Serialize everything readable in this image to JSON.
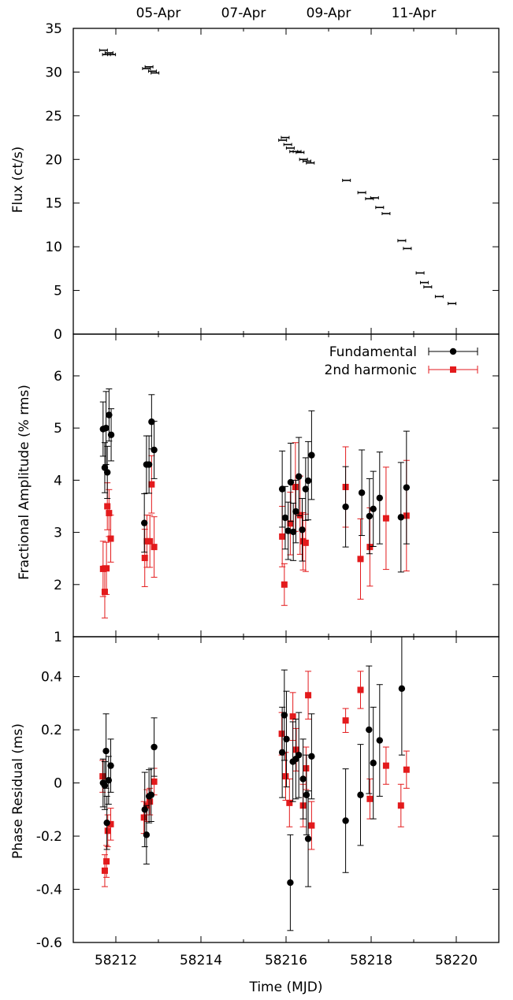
{
  "chart_data": [
    {
      "type": "scatter",
      "panel": "flux",
      "ylabel": "Flux (ct/s)",
      "xlim": [
        58211,
        58221
      ],
      "ylim": [
        0,
        35
      ],
      "yticks": [
        0,
        5,
        10,
        15,
        20,
        25,
        30,
        35
      ],
      "top_axis_ticks": [
        {
          "label": "05-Apr",
          "x": 58213
        },
        {
          "label": "07-Apr",
          "x": 58215
        },
        {
          "label": "09-Apr",
          "x": 58217
        },
        {
          "label": "11-Apr",
          "x": 58219
        }
      ],
      "series": [
        {
          "color": "#000000",
          "points": [
            {
              "x": 58211.71,
              "y": 32.5
            },
            {
              "x": 58211.78,
              "y": 32.0
            },
            {
              "x": 58211.84,
              "y": 32.2
            },
            {
              "x": 58211.9,
              "y": 32.0
            },
            {
              "x": 58212.72,
              "y": 30.4
            },
            {
              "x": 58212.78,
              "y": 30.6
            },
            {
              "x": 58212.86,
              "y": 30.1
            },
            {
              "x": 58212.92,
              "y": 29.9
            },
            {
              "x": 58215.92,
              "y": 22.2
            },
            {
              "x": 58215.98,
              "y": 22.5
            },
            {
              "x": 58216.04,
              "y": 21.7
            },
            {
              "x": 58216.1,
              "y": 21.3
            },
            {
              "x": 58216.18,
              "y": 20.9
            },
            {
              "x": 58216.26,
              "y": 20.9
            },
            {
              "x": 58216.33,
              "y": 20.8
            },
            {
              "x": 58216.41,
              "y": 20.0
            },
            {
              "x": 58216.49,
              "y": 19.8
            },
            {
              "x": 58216.57,
              "y": 19.6
            },
            {
              "x": 58217.42,
              "y": 17.6
            },
            {
              "x": 58217.78,
              "y": 16.2
            },
            {
              "x": 58217.96,
              "y": 15.5
            },
            {
              "x": 58218.08,
              "y": 15.6
            },
            {
              "x": 58218.2,
              "y": 14.5
            },
            {
              "x": 58218.35,
              "y": 13.8
            },
            {
              "x": 58218.72,
              "y": 10.7
            },
            {
              "x": 58218.85,
              "y": 9.8
            },
            {
              "x": 58219.15,
              "y": 7.0
            },
            {
              "x": 58219.25,
              "y": 5.9
            },
            {
              "x": 58219.33,
              "y": 5.4
            },
            {
              "x": 58219.6,
              "y": 4.3
            },
            {
              "x": 58219.9,
              "y": 3.5
            }
          ]
        }
      ]
    },
    {
      "type": "scatter",
      "panel": "amplitude",
      "ylabel": "Fractional Amplitude (% rms)",
      "xlim": [
        58211,
        58221
      ],
      "ylim": [
        1,
        6.8
      ],
      "yticks": [
        1,
        2,
        3,
        4,
        5,
        6
      ],
      "legend": "top-right",
      "series": [
        {
          "name": "Fundamental",
          "color": "#000000",
          "marker": "circle",
          "points": [
            {
              "x": 58211.7,
              "y": 4.98,
              "err": 0.52
            },
            {
              "x": 58211.74,
              "y": 4.24,
              "err": 0.48
            },
            {
              "x": 58211.77,
              "y": 5.0,
              "err": 0.7
            },
            {
              "x": 58211.8,
              "y": 4.15,
              "err": 0.5
            },
            {
              "x": 58211.84,
              "y": 5.25,
              "err": 0.5
            },
            {
              "x": 58211.89,
              "y": 4.87,
              "err": 0.5
            },
            {
              "x": 58212.67,
              "y": 3.18,
              "err": 0.56
            },
            {
              "x": 58212.72,
              "y": 4.3,
              "err": 0.55
            },
            {
              "x": 58212.78,
              "y": 4.3,
              "err": 0.55
            },
            {
              "x": 58212.84,
              "y": 5.12,
              "err": 0.52
            },
            {
              "x": 58212.9,
              "y": 4.58,
              "err": 0.55
            },
            {
              "x": 58215.91,
              "y": 3.83,
              "err": 0.73
            },
            {
              "x": 58215.98,
              "y": 3.28,
              "err": 0.6
            },
            {
              "x": 58216.05,
              "y": 3.03,
              "err": 0.55
            },
            {
              "x": 58216.11,
              "y": 3.96,
              "err": 0.75
            },
            {
              "x": 58216.17,
              "y": 3.01,
              "err": 0.55
            },
            {
              "x": 58216.23,
              "y": 3.4,
              "err": 0.6
            },
            {
              "x": 58216.3,
              "y": 4.07,
              "err": 0.75
            },
            {
              "x": 58216.38,
              "y": 3.05,
              "err": 0.6
            },
            {
              "x": 58216.46,
              "y": 3.83,
              "err": 0.6
            },
            {
              "x": 58216.52,
              "y": 3.99,
              "err": 0.75
            },
            {
              "x": 58216.6,
              "y": 4.48,
              "err": 0.85
            },
            {
              "x": 58217.4,
              "y": 3.49,
              "err": 0.77
            },
            {
              "x": 58217.78,
              "y": 3.76,
              "err": 0.82
            },
            {
              "x": 58217.96,
              "y": 3.31,
              "err": 0.72
            },
            {
              "x": 58218.05,
              "y": 3.45,
              "err": 0.72
            },
            {
              "x": 58218.2,
              "y": 3.66,
              "err": 0.88
            },
            {
              "x": 58218.7,
              "y": 3.29,
              "err": 1.05
            },
            {
              "x": 58218.83,
              "y": 3.86,
              "err": 1.08
            }
          ]
        },
        {
          "name": "2nd harmonic",
          "color": "#e31a1c",
          "marker": "square",
          "points": [
            {
              "x": 58211.7,
              "y": 2.3,
              "err": 0.53
            },
            {
              "x": 58211.74,
              "y": 1.86,
              "err": 0.5
            },
            {
              "x": 58211.78,
              "y": 2.31,
              "err": 0.5
            },
            {
              "x": 58211.8,
              "y": 3.5,
              "err": 0.45
            },
            {
              "x": 58211.84,
              "y": 3.37,
              "err": 0.45
            },
            {
              "x": 58211.88,
              "y": 2.88,
              "err": 0.45
            },
            {
              "x": 58212.68,
              "y": 2.51,
              "err": 0.55
            },
            {
              "x": 58212.73,
              "y": 2.83,
              "err": 0.5
            },
            {
              "x": 58212.8,
              "y": 2.83,
              "err": 0.5
            },
            {
              "x": 58212.84,
              "y": 3.92,
              "err": 0.55
            },
            {
              "x": 58212.9,
              "y": 2.72,
              "err": 0.58
            },
            {
              "x": 58215.91,
              "y": 2.92,
              "err": 0.58
            },
            {
              "x": 58215.96,
              "y": 2.0,
              "err": 0.4
            },
            {
              "x": 58216.1,
              "y": 3.17,
              "err": 0.6
            },
            {
              "x": 58216.22,
              "y": 3.87,
              "err": 0.85
            },
            {
              "x": 58216.33,
              "y": 3.33,
              "err": 0.75
            },
            {
              "x": 58216.4,
              "y": 2.83,
              "err": 0.55
            },
            {
              "x": 58216.46,
              "y": 2.8,
              "err": 0.55
            },
            {
              "x": 58217.4,
              "y": 3.87,
              "err": 0.77
            },
            {
              "x": 58217.75,
              "y": 2.49,
              "err": 0.77
            },
            {
              "x": 58217.97,
              "y": 2.72,
              "err": 0.75
            },
            {
              "x": 58218.35,
              "y": 3.27,
              "err": 0.98
            },
            {
              "x": 58218.83,
              "y": 3.32,
              "err": 1.06
            }
          ]
        }
      ]
    },
    {
      "type": "scatter",
      "panel": "phase",
      "ylabel": "Phase Residual (ms)",
      "xlabel": "Time (MJD)",
      "xlim": [
        58211,
        58221
      ],
      "ylim": [
        -0.6,
        0.55
      ],
      "yticks": [
        -0.6,
        -0.4,
        -0.2,
        0,
        0.2,
        0.4
      ],
      "ytick_labels": [
        "-0.6",
        "-0.4",
        "-0.2",
        "0",
        "0.2",
        "0.4"
      ],
      "xticks": [
        58212,
        58214,
        58216,
        58218,
        58220
      ],
      "series": [
        {
          "name": "Fundamental",
          "color": "#000000",
          "marker": "circle",
          "points": [
            {
              "x": 58211.7,
              "y": 0.0,
              "err": 0.09
            },
            {
              "x": 58211.74,
              "y": -0.01,
              "err": 0.09
            },
            {
              "x": 58211.77,
              "y": 0.12,
              "err": 0.14
            },
            {
              "x": 58211.79,
              "y": -0.15,
              "err": 0.1
            },
            {
              "x": 58211.83,
              "y": 0.01,
              "err": 0.09
            },
            {
              "x": 58211.88,
              "y": 0.065,
              "err": 0.1
            },
            {
              "x": 58212.68,
              "y": -0.1,
              "err": 0.14
            },
            {
              "x": 58212.72,
              "y": -0.195,
              "err": 0.11
            },
            {
              "x": 58212.78,
              "y": -0.05,
              "err": 0.1
            },
            {
              "x": 58212.83,
              "y": -0.045,
              "err": 0.1
            },
            {
              "x": 58212.9,
              "y": 0.135,
              "err": 0.11
            },
            {
              "x": 58215.91,
              "y": 0.115,
              "err": 0.17
            },
            {
              "x": 58215.96,
              "y": 0.255,
              "err": 0.17
            },
            {
              "x": 58216.01,
              "y": 0.165,
              "err": 0.18
            },
            {
              "x": 58216.1,
              "y": -0.375,
              "err": 0.18
            },
            {
              "x": 58216.16,
              "y": 0.08,
              "err": 0.15
            },
            {
              "x": 58216.23,
              "y": 0.09,
              "err": 0.15
            },
            {
              "x": 58216.3,
              "y": 0.105,
              "err": 0.16
            },
            {
              "x": 58216.4,
              "y": 0.015,
              "err": 0.15
            },
            {
              "x": 58216.48,
              "y": -0.045,
              "err": 0.15
            },
            {
              "x": 58216.52,
              "y": -0.21,
              "err": 0.18
            },
            {
              "x": 58216.6,
              "y": 0.1,
              "err": 0.16
            },
            {
              "x": 58217.4,
              "y": -0.142,
              "err": 0.195
            },
            {
              "x": 58217.75,
              "y": -0.045,
              "err": 0.19
            },
            {
              "x": 58217.95,
              "y": 0.2,
              "err": 0.24
            },
            {
              "x": 58218.05,
              "y": 0.075,
              "err": 0.21
            },
            {
              "x": 58218.2,
              "y": 0.16,
              "err": 0.21
            },
            {
              "x": 58218.72,
              "y": 0.355,
              "err": 0.25
            }
          ]
        },
        {
          "name": "2nd harmonic",
          "color": "#e31a1c",
          "marker": "square",
          "points": [
            {
              "x": 58211.69,
              "y": 0.025,
              "err": 0.06
            },
            {
              "x": 58211.74,
              "y": -0.33,
              "err": 0.06
            },
            {
              "x": 58211.78,
              "y": -0.295,
              "err": 0.06
            },
            {
              "x": 58211.81,
              "y": -0.18,
              "err": 0.06
            },
            {
              "x": 58211.88,
              "y": -0.155,
              "err": 0.06
            },
            {
              "x": 58212.66,
              "y": -0.13,
              "err": 0.06
            },
            {
              "x": 58212.73,
              "y": -0.085,
              "err": 0.06
            },
            {
              "x": 58212.8,
              "y": -0.07,
              "err": 0.05
            },
            {
              "x": 58212.9,
              "y": 0.005,
              "err": 0.05
            },
            {
              "x": 58215.9,
              "y": 0.185,
              "err": 0.08
            },
            {
              "x": 58215.99,
              "y": 0.025,
              "err": 0.09
            },
            {
              "x": 58216.08,
              "y": -0.075,
              "err": 0.09
            },
            {
              "x": 58216.16,
              "y": 0.25,
              "err": 0.09
            },
            {
              "x": 58216.24,
              "y": 0.125,
              "err": 0.08
            },
            {
              "x": 58216.4,
              "y": -0.085,
              "err": 0.08
            },
            {
              "x": 58216.47,
              "y": 0.055,
              "err": 0.08
            },
            {
              "x": 58216.52,
              "y": 0.33,
              "err": 0.09
            },
            {
              "x": 58216.6,
              "y": -0.16,
              "err": 0.09
            },
            {
              "x": 58217.4,
              "y": 0.235,
              "err": 0.045
            },
            {
              "x": 58217.75,
              "y": 0.35,
              "err": 0.07
            },
            {
              "x": 58217.97,
              "y": -0.06,
              "err": 0.075
            },
            {
              "x": 58218.35,
              "y": 0.065,
              "err": 0.07
            },
            {
              "x": 58218.7,
              "y": -0.085,
              "err": 0.08
            },
            {
              "x": 58218.83,
              "y": 0.05,
              "err": 0.07
            }
          ]
        }
      ]
    }
  ]
}
